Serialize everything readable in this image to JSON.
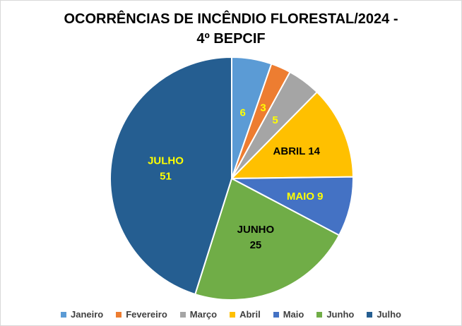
{
  "chart_data": {
    "type": "pie",
    "title_line1": "OCORRÊNCIAS DE INCÊNDIO FLORESTAL/2024 -",
    "title_line2": "4º BEPCIF",
    "slices": [
      {
        "name": "Janeiro",
        "value": 6,
        "color": "#5b9bd5",
        "label": "6",
        "label_color": "#ffff00"
      },
      {
        "name": "Fevereiro",
        "value": 3,
        "color": "#ed7d31",
        "label": "3",
        "label_color": "#ffff00"
      },
      {
        "name": "Março",
        "value": 5,
        "color": "#a5a5a5",
        "label": "5",
        "label_color": "#ffff00"
      },
      {
        "name": "Abril",
        "value": 14,
        "color": "#ffc000",
        "label": "ABRIL 14",
        "label_color": "#000000"
      },
      {
        "name": "Maio",
        "value": 9,
        "color": "#4472c4",
        "label": "MAIO 9",
        "label_color": "#ffff00"
      },
      {
        "name": "Junho",
        "value": 25,
        "color": "#70ad47",
        "label": "JUNHO\n25",
        "label_color": "#000000"
      },
      {
        "name": "Julho",
        "value": 51,
        "color": "#255e91",
        "label": "JULHO\n51",
        "label_color": "#ffff00"
      }
    ],
    "legend": [
      "Janeiro",
      "Fevereiro",
      "Março",
      "Abril",
      "Maio",
      "Junho",
      "Julho"
    ],
    "legend_position": "bottom"
  }
}
